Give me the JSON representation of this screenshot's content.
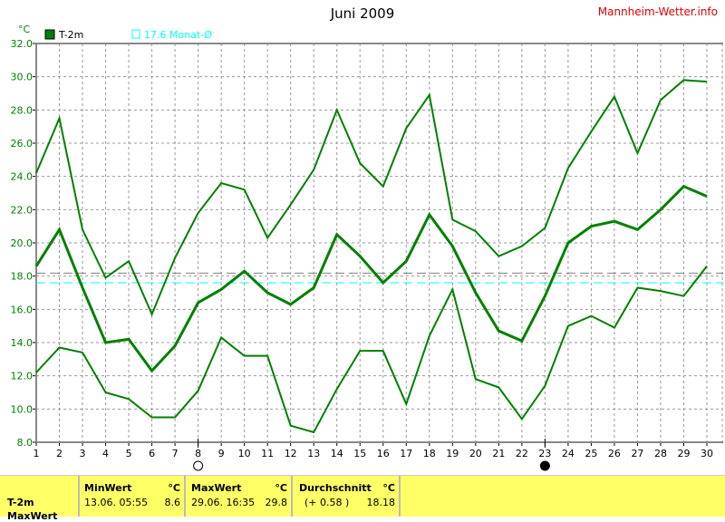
{
  "title": "Juni 2009",
  "brand": "Mannheim-Wetter.info",
  "legend": [
    {
      "label": "T-2m",
      "color": "#008000"
    },
    {
      "label": "17.6 Monat-Ø",
      "color": "#00ffff"
    }
  ],
  "chart_data": {
    "type": "line",
    "title": "Juni 2009",
    "ylabel": "°C",
    "ylim": [
      8,
      32
    ],
    "yticks": [
      "8.0",
      "10.0",
      "12.0",
      "14.0",
      "16.0",
      "18.0",
      "20.0",
      "22.0",
      "24.0",
      "26.0",
      "28.0",
      "30.0",
      "32.0"
    ],
    "x": [
      1,
      2,
      3,
      4,
      5,
      6,
      7,
      8,
      9,
      10,
      11,
      12,
      13,
      14,
      15,
      16,
      17,
      18,
      19,
      20,
      21,
      22,
      23,
      24,
      25,
      26,
      27,
      28,
      29,
      30
    ],
    "grid": true,
    "series": [
      {
        "values": [
          24.2,
          27.5,
          20.8,
          17.9,
          18.9,
          15.7,
          19.1,
          21.8,
          23.6,
          23.2,
          20.3,
          22.3,
          24.4,
          28.0,
          24.8,
          23.4,
          26.9,
          28.9,
          21.4,
          20.7,
          19.2,
          19.8,
          20.9,
          24.5,
          26.7,
          28.8,
          25.4,
          28.6,
          29.8,
          29.7
        ],
        "color": "#008000"
      },
      {
        "name": "T-2m",
        "values": [
          18.6,
          20.8,
          17.3,
          14.0,
          14.2,
          12.3,
          13.8,
          16.4,
          17.2,
          18.3,
          17.0,
          16.3,
          17.3,
          20.5,
          19.2,
          17.6,
          18.9,
          21.7,
          19.8,
          17.0,
          14.7,
          14.1,
          16.8,
          20.0,
          21.0,
          21.3,
          20.8,
          22.0,
          23.4,
          22.8
        ],
        "color": "#008000"
      },
      {
        "values": [
          12.2,
          13.7,
          13.4,
          11.0,
          10.6,
          9.5,
          9.5,
          11.1,
          14.3,
          13.2,
          13.2,
          9.0,
          8.6,
          11.2,
          13.5,
          13.5,
          10.3,
          14.4,
          17.2,
          11.8,
          11.3,
          9.4,
          11.4,
          15.0,
          15.6,
          14.9,
          17.3,
          17.1,
          16.8,
          18.6
        ],
        "color": "#008000"
      }
    ],
    "reference_lines": [
      {
        "value": 18.18,
        "color": "#808080"
      },
      {
        "value": 17.6,
        "label": "17.6 Monat-Ø",
        "color": "#00ffff"
      }
    ],
    "moon_phases": [
      {
        "day": 8,
        "phase": "full-moon"
      },
      {
        "day": 23,
        "phase": "new-moon"
      }
    ]
  },
  "stats": {
    "row_label": "T-2m",
    "next_row_label": "MaxWert",
    "min": {
      "header": "MinWert",
      "unit": "°C",
      "time": "13.06.  05:55",
      "value": "8.6"
    },
    "max": {
      "header": "MaxWert",
      "unit": "°C",
      "time": "29.06.  16:35",
      "value": "29.8"
    },
    "avg": {
      "header": "Durchschnitt",
      "unit": "°C",
      "delta": "(+ 0.58 )",
      "value": "18.18"
    }
  }
}
